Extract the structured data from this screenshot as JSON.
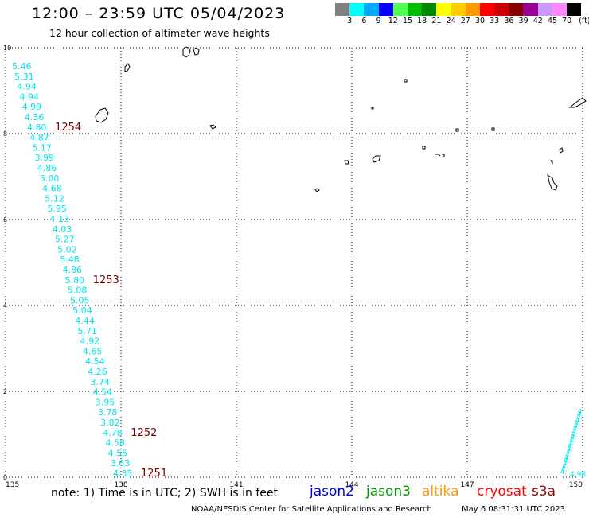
{
  "header": {
    "title": "12:00 – 23:59 UTC 05/04/2023",
    "subtitle": "12 hour collection of altimeter wave heights"
  },
  "legend": {
    "colors": [
      "#808080",
      "#00ffff",
      "#00aaff",
      "#0000ff",
      "#55ff55",
      "#00bb00",
      "#008800",
      "#ffff00",
      "#ffcc00",
      "#ff9900",
      "#ff0000",
      "#cc0000",
      "#880000",
      "#990099",
      "#cc99ff",
      "#ff88ff",
      "#000000"
    ],
    "labels": [
      "3",
      "6",
      "9",
      "12",
      "15",
      "18",
      "21",
      "24",
      "27",
      "30",
      "33",
      "36",
      "39",
      "42",
      "45",
      "70"
    ],
    "unit": "(ft)"
  },
  "map": {
    "x_ticks": [
      "135",
      "138",
      "141",
      "144",
      "147",
      "150"
    ],
    "y_ticks": [
      "10",
      "8",
      "6",
      "4",
      "2",
      "0"
    ],
    "x_range": [
      135,
      150
    ],
    "y_range": [
      0,
      10
    ],
    "swh_color": "#00e5ee",
    "pass_color": "#7a0000",
    "swh_values": [
      "5.46",
      "5.31",
      "4.94",
      "4.94",
      "4.99",
      "4.36",
      "4.80",
      "4.87",
      "5.17",
      "3.99",
      "4.86",
      "5.00",
      "4.68",
      "5.12",
      "5.95",
      "4.13",
      "4.03",
      "5.27",
      "5.02",
      "5.48",
      "4.86",
      "5.80",
      "5.08",
      "5.05",
      "5.04",
      "4.44",
      "5.71",
      "4.92",
      "4.65",
      "4.54",
      "4.26",
      "3.74",
      "4.54",
      "3.95",
      "3.78",
      "3.82",
      "4.78",
      "4.58",
      "4.55",
      "3.63",
      "4.35"
    ],
    "passes": [
      {
        "label": "1254",
        "swh_index": 6
      },
      {
        "label": "1253",
        "swh_index": 21
      },
      {
        "label": "1252",
        "swh_index": 36
      },
      {
        "label": "1251",
        "swh_index": 40
      }
    ],
    "corner_value": "4.98"
  },
  "note": "note:  1) Time is in UTC;  2) SWH is in feet",
  "satellites": [
    {
      "name": "jason2",
      "color": "#0000dd"
    },
    {
      "name": "jason3",
      "color": "#009900"
    },
    {
      "name": "altika",
      "color": "#ff9900"
    },
    {
      "name": "cryosat",
      "color": "#ff0000"
    },
    {
      "name": "s3a",
      "color": "#990000"
    }
  ],
  "footer": {
    "credit": "NOAA/NESDIS Center for Satellite Applications and Research",
    "timestamp": "May  6 08:31:31 UTC 2023"
  }
}
